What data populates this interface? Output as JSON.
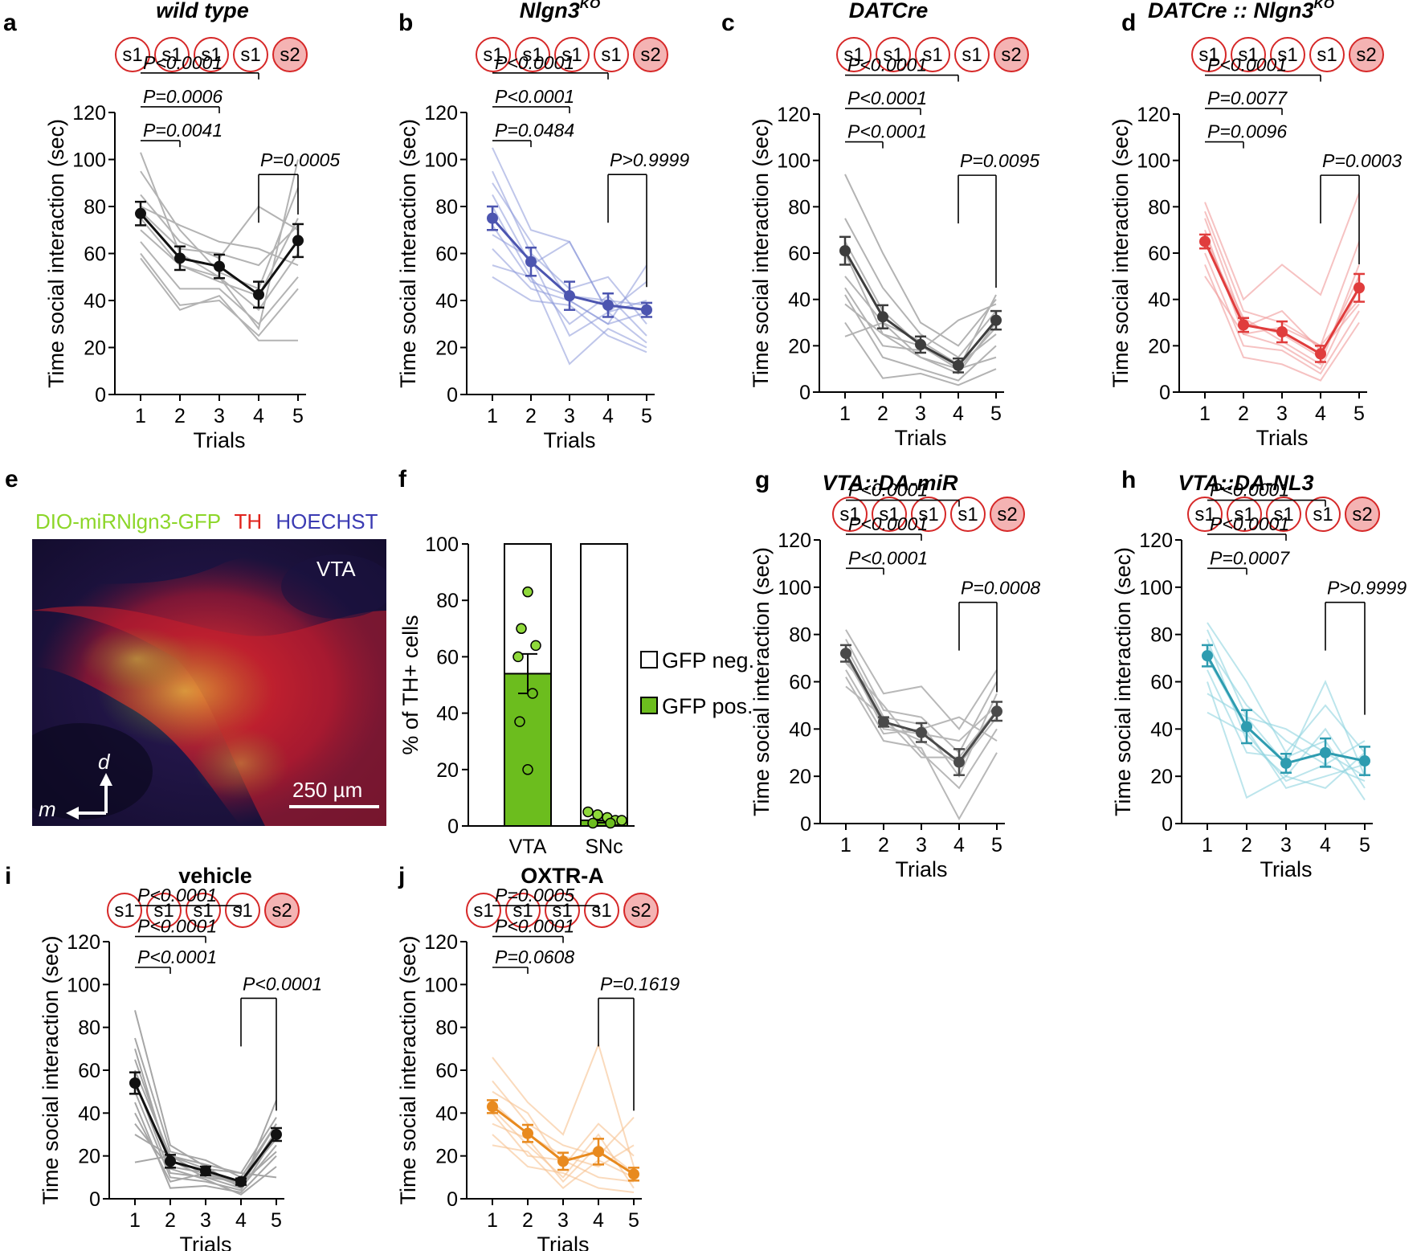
{
  "figure": {
    "panel_e": {
      "label": "e",
      "stain_legend": [
        {
          "text": "DIO-miRNlgn3-GFP",
          "color": "#8cd629"
        },
        {
          "text": "TH",
          "color": "#e0231c"
        },
        {
          "text": "HOECHST",
          "color": "#3b3bb3"
        }
      ],
      "region": "VTA",
      "scale_bar": "250 µm",
      "axis_d": "d",
      "axis_m": "m"
    },
    "stimulus_sequence": [
      "s1",
      "s1",
      "s1",
      "s1",
      "s2"
    ]
  },
  "chart_data": [
    {
      "id": "a",
      "type": "line",
      "title": "wild type",
      "title_italic": true,
      "color": "#111111",
      "indiv_color": "#b3b3b3",
      "indiv_opacity": 1,
      "x": [
        1,
        2,
        3,
        4,
        5
      ],
      "xlabel": "Trials",
      "ylabel": "Time social interaction (sec)",
      "ylim": [
        0,
        120
      ],
      "yticks": [
        0,
        20,
        40,
        60,
        80,
        100,
        120
      ],
      "mean": [
        77,
        58,
        54.5,
        42.5,
        65.5
      ],
      "sem": [
        5,
        5,
        5,
        5.5,
        7
      ],
      "individuals": [
        [
          103,
          60,
          50,
          28,
          100
        ],
        [
          95,
          70,
          52,
          45,
          88
        ],
        [
          85,
          65,
          58,
          80,
          70
        ],
        [
          80,
          72,
          65,
          62,
          55
        ],
        [
          78,
          62,
          60,
          55,
          72
        ],
        [
          75,
          55,
          48,
          42,
          75
        ],
        [
          70,
          55,
          50,
          36,
          60
        ],
        [
          65,
          45,
          45,
          30,
          50
        ],
        [
          60,
          38,
          40,
          25,
          45
        ],
        [
          58,
          36,
          42,
          23,
          23
        ]
      ],
      "comparisons": [
        {
          "from": 1,
          "to": 4,
          "text": "P<0.0001"
        },
        {
          "from": 1,
          "to": 3,
          "text": "P=0.0006"
        },
        {
          "from": 1,
          "to": 2,
          "text": "P=0.0041"
        },
        {
          "from": 4,
          "to": 5,
          "text": "P=0.0005"
        }
      ]
    },
    {
      "id": "b",
      "type": "line",
      "title": "Nlgn3",
      "title_sup": "KO",
      "title_italic": true,
      "color": "#4c55b0",
      "indiv_color": "#8b98d8",
      "indiv_opacity": 0.55,
      "x": [
        1,
        2,
        3,
        4,
        5
      ],
      "xlabel": "Trials",
      "ylabel": "Time social interaction (sec)",
      "ylim": [
        0,
        120
      ],
      "yticks": [
        0,
        20,
        40,
        60,
        80,
        100,
        120
      ],
      "mean": [
        75,
        56.5,
        42,
        38,
        36
      ],
      "sem": [
        5,
        6,
        6,
        5,
        3
      ],
      "individuals": [
        [
          105,
          70,
          65,
          35,
          48
        ],
        [
          95,
          60,
          45,
          50,
          30
        ],
        [
          90,
          65,
          40,
          30,
          55
        ],
        [
          85,
          55,
          65,
          35,
          40
        ],
        [
          80,
          50,
          30,
          42,
          25
        ],
        [
          72,
          48,
          42,
          40,
          38
        ],
        [
          68,
          58,
          25,
          35,
          22
        ],
        [
          62,
          45,
          40,
          30,
          35
        ],
        [
          55,
          50,
          13,
          28,
          20
        ],
        [
          50,
          40,
          38,
          25,
          18
        ]
      ],
      "comparisons": [
        {
          "from": 1,
          "to": 4,
          "text": "P<0.0001"
        },
        {
          "from": 1,
          "to": 3,
          "text": "P<0.0001"
        },
        {
          "from": 1,
          "to": 2,
          "text": "P=0.0484"
        },
        {
          "from": 4,
          "to": 5,
          "text": "P>0.9999"
        }
      ]
    },
    {
      "id": "c",
      "type": "line",
      "title": "DATCre",
      "title_italic": true,
      "color": "#3d3d3d",
      "indiv_color": "#b3b3b3",
      "indiv_opacity": 1,
      "x": [
        1,
        2,
        3,
        4,
        5
      ],
      "xlabel": "Trials",
      "ylabel": "Time social interaction (sec)",
      "ylim": [
        0,
        120
      ],
      "yticks": [
        0,
        20,
        40,
        60,
        80,
        100,
        120
      ],
      "mean": [
        61,
        32.5,
        20.5,
        11.5,
        31
      ],
      "sem": [
        6,
        5,
        3.5,
        3,
        4
      ],
      "individuals": [
        [
          94,
          60,
          30,
          20,
          40
        ],
        [
          75,
          45,
          25,
          15,
          35
        ],
        [
          65,
          35,
          20,
          10,
          42
        ],
        [
          60,
          25,
          15,
          8,
          30
        ],
        [
          50,
          30,
          22,
          12,
          25
        ],
        [
          45,
          20,
          18,
          31,
          38
        ],
        [
          42,
          15,
          10,
          5,
          20
        ],
        [
          38,
          25,
          20,
          10,
          15
        ],
        [
          30,
          6,
          8,
          3,
          10
        ],
        [
          24,
          30,
          15,
          10,
          28
        ]
      ],
      "comparisons": [
        {
          "from": 1,
          "to": 4,
          "text": "P<0.0001"
        },
        {
          "from": 1,
          "to": 3,
          "text": "P<0.0001"
        },
        {
          "from": 1,
          "to": 2,
          "text": "P<0.0001"
        },
        {
          "from": 4,
          "to": 5,
          "text": "P=0.0095"
        }
      ]
    },
    {
      "id": "d",
      "type": "line",
      "title": "DATCre :: Nlgn3",
      "title_sup": "KO",
      "title_italic": true,
      "color": "#e03c3c",
      "indiv_color": "#f09a9a",
      "indiv_opacity": 0.6,
      "x": [
        1,
        2,
        3,
        4,
        5
      ],
      "xlabel": "Trials",
      "ylabel": "Time social interaction (sec)",
      "ylim": [
        0,
        120
      ],
      "yticks": [
        0,
        20,
        40,
        60,
        80,
        100,
        120
      ],
      "mean": [
        65,
        29,
        26,
        16.5,
        45
      ],
      "sem": [
        3,
        3,
        4.5,
        3.5,
        6
      ],
      "individuals": [
        [
          82,
          40,
          55,
          42,
          86
        ],
        [
          78,
          35,
          30,
          20,
          65
        ],
        [
          75,
          30,
          25,
          15,
          50
        ],
        [
          70,
          25,
          20,
          10,
          45
        ],
        [
          68,
          28,
          35,
          18,
          38
        ],
        [
          65,
          32,
          22,
          12,
          55
        ],
        [
          60,
          20,
          18,
          8,
          35
        ],
        [
          55,
          15,
          12,
          5,
          30
        ],
        [
          50,
          25,
          28,
          20,
          40
        ]
      ],
      "comparisons": [
        {
          "from": 1,
          "to": 4,
          "text": "P<0.0001"
        },
        {
          "from": 1,
          "to": 3,
          "text": "P=0.0077"
        },
        {
          "from": 1,
          "to": 2,
          "text": "P=0.0096"
        },
        {
          "from": 4,
          "to": 5,
          "text": "P=0.0003"
        }
      ]
    },
    {
      "id": "f",
      "type": "bar",
      "ylabel": "% of TH+ cells",
      "categories": [
        "VTA",
        "SNc"
      ],
      "ylim": [
        0,
        100
      ],
      "yticks": [
        0,
        20,
        40,
        60,
        80,
        100
      ],
      "gfp_pos": [
        54,
        2
      ],
      "gfp_pos_sem": [
        7,
        0.8
      ],
      "points": [
        [
          83,
          70,
          64,
          60,
          47,
          37,
          20
        ],
        [
          5,
          4,
          3,
          2,
          2,
          1,
          1
        ]
      ],
      "legend": [
        {
          "label": "GFP neg.",
          "color": "#ffffff"
        },
        {
          "label": "GFP pos.",
          "color": "#6cbd1e"
        }
      ]
    },
    {
      "id": "g",
      "type": "line",
      "title": "VTA::DA-miR",
      "title_italic": true,
      "color": "#4a4a4a",
      "indiv_color": "#b8b8b8",
      "indiv_opacity": 1,
      "x": [
        1,
        2,
        3,
        4,
        5
      ],
      "xlabel": "Trials",
      "ylabel": "Time social interaction (sec)",
      "ylim": [
        0,
        120
      ],
      "yticks": [
        0,
        20,
        40,
        60,
        80,
        100,
        120
      ],
      "mean": [
        72,
        43,
        38.5,
        26,
        47.5
      ],
      "sem": [
        3.5,
        2,
        4,
        5.5,
        4
      ],
      "individuals": [
        [
          82,
          55,
          58,
          40,
          65
        ],
        [
          78,
          48,
          45,
          30,
          60
        ],
        [
          75,
          45,
          42,
          20,
          55
        ],
        [
          72,
          40,
          38,
          35,
          50
        ],
        [
          70,
          42,
          35,
          25,
          45
        ],
        [
          68,
          50,
          30,
          15,
          40
        ],
        [
          65,
          38,
          40,
          45,
          35
        ],
        [
          62,
          35,
          32,
          2,
          30
        ],
        [
          58,
          45,
          28,
          28,
          48
        ]
      ],
      "comparisons": [
        {
          "from": 1,
          "to": 4,
          "text": "P<0.0001"
        },
        {
          "from": 1,
          "to": 3,
          "text": "P<0.0001"
        },
        {
          "from": 1,
          "to": 2,
          "text": "P<0.0001"
        },
        {
          "from": 4,
          "to": 5,
          "text": "P=0.0008"
        }
      ]
    },
    {
      "id": "h",
      "type": "line",
      "title": "VTA::DA-NL3",
      "title_italic": true,
      "color": "#2e9cb0",
      "indiv_color": "#8fd3e0",
      "indiv_opacity": 0.6,
      "x": [
        1,
        2,
        3,
        4,
        5
      ],
      "xlabel": "Trials",
      "ylabel": "Time social interaction (sec)",
      "ylim": [
        0,
        120
      ],
      "yticks": [
        0,
        20,
        40,
        60,
        80,
        100,
        120
      ],
      "mean": [
        71,
        41,
        25.5,
        30,
        26.5
      ],
      "sem": [
        4.5,
        7,
        4,
        6,
        6
      ],
      "individuals": [
        [
          85,
          60,
          30,
          50,
          30
        ],
        [
          82,
          45,
          25,
          60,
          20
        ],
        [
          78,
          35,
          20,
          40,
          15
        ],
        [
          75,
          50,
          35,
          25,
          35
        ],
        [
          70,
          40,
          15,
          20,
          25
        ],
        [
          65,
          30,
          28,
          35,
          10
        ],
        [
          60,
          11,
          20,
          15,
          30
        ],
        [
          55,
          45,
          40,
          30,
          20
        ],
        [
          47,
          38,
          18,
          25,
          18
        ]
      ],
      "comparisons": [
        {
          "from": 1,
          "to": 4,
          "text": "P<0.0001"
        },
        {
          "from": 1,
          "to": 3,
          "text": "P<0.0001"
        },
        {
          "from": 1,
          "to": 2,
          "text": "P=0.0007"
        },
        {
          "from": 4,
          "to": 5,
          "text": "P>0.9999"
        }
      ]
    },
    {
      "id": "i",
      "type": "line",
      "title": "vehicle",
      "title_italic": false,
      "color": "#111111",
      "indiv_color": "#a6a6a6",
      "indiv_opacity": 1,
      "x": [
        1,
        2,
        3,
        4,
        5
      ],
      "xlabel": "Trials",
      "ylabel": "Time social interaction (sec)",
      "ylim": [
        0,
        120
      ],
      "yticks": [
        0,
        20,
        40,
        60,
        80,
        100,
        120
      ],
      "mean": [
        54,
        17.5,
        13,
        8,
        30
      ],
      "sem": [
        5,
        3,
        2,
        1.5,
        3
      ],
      "individuals": [
        [
          88,
          25,
          15,
          5,
          46
        ],
        [
          75,
          22,
          18,
          10,
          35
        ],
        [
          70,
          15,
          12,
          6,
          32
        ],
        [
          65,
          18,
          10,
          8,
          28
        ],
        [
          60,
          20,
          14,
          12,
          38
        ],
        [
          55,
          12,
          10,
          5,
          25
        ],
        [
          50,
          10,
          8,
          4,
          30
        ],
        [
          45,
          5,
          6,
          3,
          20
        ],
        [
          40,
          8,
          12,
          7,
          22
        ],
        [
          35,
          14,
          9,
          2,
          15
        ],
        [
          30,
          20,
          11,
          8,
          35
        ],
        [
          17,
          20,
          16,
          12,
          10
        ]
      ],
      "comparisons": [
        {
          "from": 1,
          "to": 4,
          "text": "P<0.0001"
        },
        {
          "from": 1,
          "to": 3,
          "text": "P<0.0001"
        },
        {
          "from": 1,
          "to": 2,
          "text": "P<0.0001"
        },
        {
          "from": 4,
          "to": 5,
          "text": "P<0.0001"
        }
      ]
    },
    {
      "id": "j",
      "type": "line",
      "title": "OXTR-A",
      "title_italic": false,
      "color": "#e88a1f",
      "indiv_color": "#f6c28f",
      "indiv_opacity": 0.6,
      "x": [
        1,
        2,
        3,
        4,
        5
      ],
      "xlabel": "Trials",
      "ylabel": "Time social interaction (sec)",
      "ylim": [
        0,
        120
      ],
      "yticks": [
        0,
        20,
        40,
        60,
        80,
        100,
        120
      ],
      "mean": [
        43,
        30.5,
        17.5,
        22,
        11.5
      ],
      "sem": [
        3,
        4,
        4,
        6,
        3
      ],
      "individuals": [
        [
          66,
          45,
          30,
          72,
          15
        ],
        [
          55,
          35,
          25,
          20,
          38
        ],
        [
          50,
          40,
          15,
          35,
          20
        ],
        [
          45,
          30,
          20,
          15,
          25
        ],
        [
          42,
          25,
          10,
          30,
          5
        ],
        [
          40,
          20,
          18,
          10,
          8
        ],
        [
          35,
          28,
          8,
          25,
          12
        ],
        [
          30,
          15,
          12,
          5,
          3
        ],
        [
          25,
          22,
          5,
          18,
          10
        ]
      ],
      "comparisons": [
        {
          "from": 1,
          "to": 4,
          "text": "P=0.0005"
        },
        {
          "from": 1,
          "to": 3,
          "text": "P<0.0001"
        },
        {
          "from": 1,
          "to": 2,
          "text": "P=0.0608"
        },
        {
          "from": 4,
          "to": 5,
          "text": "P=0.1619"
        }
      ]
    }
  ]
}
